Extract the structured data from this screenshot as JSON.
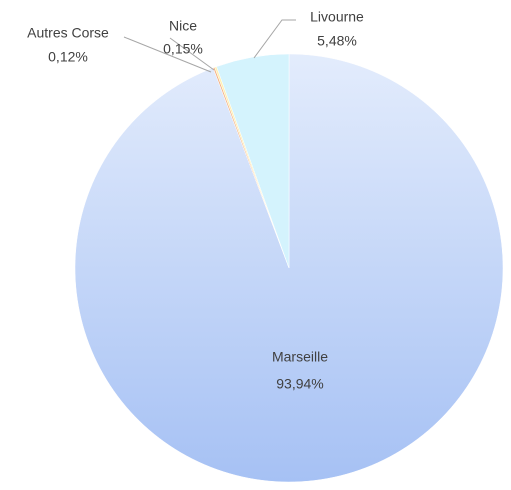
{
  "chart_data": {
    "type": "pie",
    "categories": [
      "Marseille",
      "Autres Corse",
      "Nice",
      "Livourne"
    ],
    "values": [
      93.94,
      0.12,
      0.15,
      5.48
    ],
    "value_labels": [
      "93,94%",
      "0,12%",
      "0,15%",
      "5,48%"
    ],
    "colors": [
      "#c3d6f8",
      "#f4b183",
      "#fff0b3",
      "#d4f3fd"
    ]
  }
}
